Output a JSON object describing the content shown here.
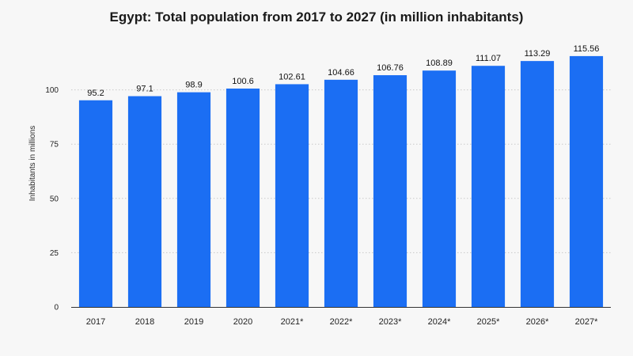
{
  "chart_data": {
    "type": "bar",
    "title": "Egypt: Total population from 2017 to 2027 (in million inhabitants)",
    "xlabel": "",
    "ylabel": "Inhabitants in millions",
    "categories": [
      "2017",
      "2018",
      "2019",
      "2020",
      "2021*",
      "2022*",
      "2023*",
      "2024*",
      "2025*",
      "2026*",
      "2027*"
    ],
    "values": [
      95.2,
      97.1,
      98.9,
      100.6,
      102.61,
      104.66,
      106.76,
      108.89,
      111.07,
      113.29,
      115.56
    ],
    "value_labels": [
      "95.2",
      "97.1",
      "98.9",
      "100.6",
      "102.61",
      "104.66",
      "106.76",
      "108.89",
      "111.07",
      "113.29",
      "115.56"
    ],
    "ylim": [
      0,
      125
    ],
    "yticks": [
      0,
      25,
      50,
      75,
      100
    ],
    "grid": true,
    "legend": "none",
    "bar_color": "#1b6ef3"
  }
}
